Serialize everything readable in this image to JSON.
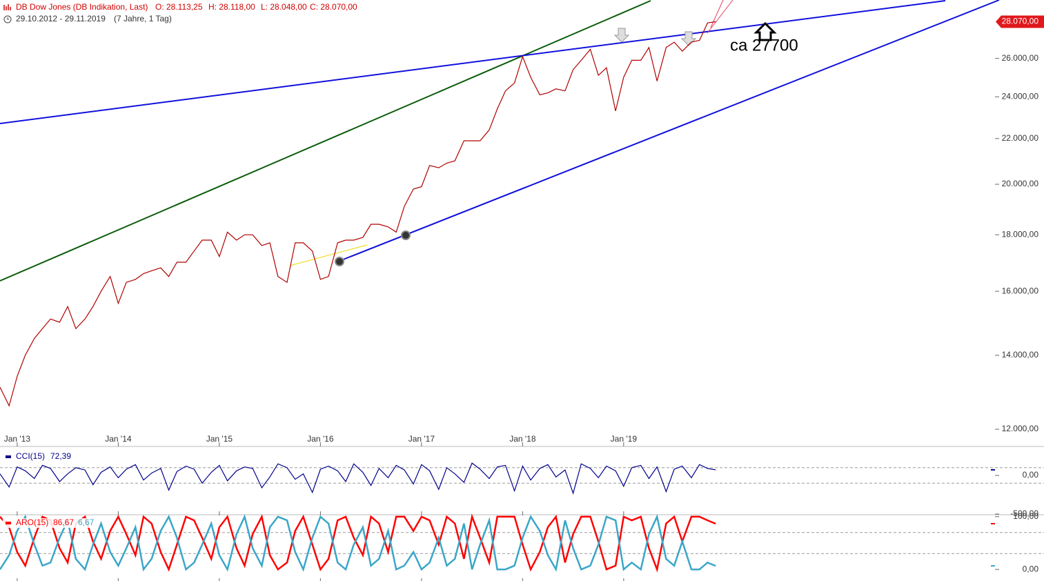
{
  "header": {
    "title": "DB Dow Jones (DB Indikation, Last)",
    "quote": [
      "O: 28.113,25",
      "H: 28.118,00",
      "L: 28.048,00",
      "C: 28.070,00"
    ],
    "period": "29.10.2012 - 29.11.2019",
    "range_note": "(7 Jahre, 1 Tag)"
  },
  "chart_data": [
    {
      "type": "line",
      "log_scale": true,
      "annotation": "ca 27700",
      "x": [
        2012.83,
        2012.92,
        2013.0,
        2013.08,
        2013.17,
        2013.25,
        2013.33,
        2013.42,
        2013.5,
        2013.58,
        2013.67,
        2013.75,
        2013.83,
        2013.92,
        2014.0,
        2014.08,
        2014.17,
        2014.25,
        2014.33,
        2014.42,
        2014.5,
        2014.58,
        2014.67,
        2014.75,
        2014.83,
        2014.92,
        2015.0,
        2015.08,
        2015.17,
        2015.25,
        2015.33,
        2015.42,
        2015.5,
        2015.58,
        2015.67,
        2015.75,
        2015.83,
        2015.92,
        2016.0,
        2016.08,
        2016.17,
        2016.25,
        2016.33,
        2016.42,
        2016.5,
        2016.58,
        2016.67,
        2016.75,
        2016.83,
        2016.92,
        2017.0,
        2017.08,
        2017.17,
        2017.25,
        2017.33,
        2017.42,
        2017.5,
        2017.58,
        2017.67,
        2017.75,
        2017.83,
        2017.92,
        2018.0,
        2018.08,
        2018.17,
        2018.25,
        2018.33,
        2018.42,
        2018.5,
        2018.58,
        2018.67,
        2018.75,
        2018.83,
        2018.92,
        2019.0,
        2019.08,
        2019.17,
        2019.25,
        2019.33,
        2019.42,
        2019.5,
        2019.58,
        2019.67,
        2019.75,
        2019.83,
        2019.91
      ],
      "series": [
        {
          "color": "#b00000",
          "values": [
            13100,
            12600,
            13400,
            14000,
            14500,
            14800,
            15100,
            15000,
            15500,
            14800,
            15100,
            15500,
            16000,
            16500,
            15600,
            16300,
            16400,
            16600,
            16700,
            16800,
            16500,
            17000,
            17000,
            17400,
            17800,
            17800,
            17200,
            18100,
            17800,
            18000,
            18000,
            17600,
            17700,
            16500,
            16300,
            17700,
            17700,
            17400,
            16400,
            16500,
            17700,
            17800,
            17800,
            17900,
            18400,
            18400,
            18300,
            18100,
            19100,
            19800,
            19900,
            20800,
            20700,
            20900,
            21000,
            21900,
            21900,
            21900,
            22400,
            23400,
            24300,
            24700,
            26100,
            25000,
            24100,
            24200,
            24400,
            24300,
            25400,
            25900,
            26500,
            25100,
            25500,
            23300,
            25000,
            25900,
            25900,
            26600,
            24800,
            26600,
            26900,
            26400,
            26900,
            27000,
            28000,
            28070
          ]
        }
      ],
      "last": {
        "value": 28070,
        "label": "28.070,00"
      },
      "xlim": [
        2012.83,
        2022.66
      ],
      "xticks": [
        {
          "value": 2013,
          "label": "Jan '13"
        },
        {
          "value": 2014,
          "label": "Jan '14"
        },
        {
          "value": 2015,
          "label": "Jan '15"
        },
        {
          "value": 2016,
          "label": "Jan '16"
        },
        {
          "value": 2017,
          "label": "Jan '17"
        },
        {
          "value": 2018,
          "label": "Jan '18"
        },
        {
          "value": 2019,
          "label": "Jan '19"
        }
      ],
      "ylim": [
        11610,
        29370
      ],
      "yticks": [
        {
          "value": 12000,
          "label": "12.000,00"
        },
        {
          "value": 14000,
          "label": "14.000,00"
        },
        {
          "value": 16000,
          "label": "16.000,00"
        },
        {
          "value": 18000,
          "label": "18.000,00"
        },
        {
          "value": 20000,
          "label": "20.000,00"
        },
        {
          "value": 22000,
          "label": "22.000,00"
        },
        {
          "value": 24000,
          "label": "24.000,00"
        },
        {
          "value": 26000,
          "label": "26.000,00"
        }
      ]
    },
    {
      "type": "line",
      "name": "CCI(15)",
      "current": {
        "value": 72.39,
        "label": "72,39"
      },
      "x": [
        2012.83,
        2012.92,
        2013.0,
        2013.08,
        2013.17,
        2013.25,
        2013.33,
        2013.42,
        2013.5,
        2013.58,
        2013.67,
        2013.75,
        2013.83,
        2013.92,
        2014.0,
        2014.08,
        2014.17,
        2014.25,
        2014.33,
        2014.42,
        2014.5,
        2014.58,
        2014.67,
        2014.75,
        2014.83,
        2014.92,
        2015.0,
        2015.08,
        2015.17,
        2015.25,
        2015.33,
        2015.42,
        2015.5,
        2015.58,
        2015.67,
        2015.75,
        2015.83,
        2015.92,
        2016.0,
        2016.08,
        2016.17,
        2016.25,
        2016.33,
        2016.42,
        2016.5,
        2016.58,
        2016.67,
        2016.75,
        2016.83,
        2016.92,
        2017.0,
        2017.08,
        2017.17,
        2017.25,
        2017.33,
        2017.42,
        2017.5,
        2017.58,
        2017.67,
        2017.75,
        2017.83,
        2017.92,
        2018.0,
        2018.08,
        2018.17,
        2018.25,
        2018.33,
        2018.42,
        2018.5,
        2018.58,
        2018.67,
        2018.75,
        2018.83,
        2018.92,
        2019.0,
        2019.08,
        2019.17,
        2019.25,
        2019.33,
        2019.42,
        2019.5,
        2019.58,
        2019.67,
        2019.75,
        2019.83,
        2019.91
      ],
      "series": [
        {
          "color": "#00008b",
          "values": [
            20,
            -150,
            110,
            60,
            -40,
            130,
            90,
            -80,
            20,
            100,
            70,
            -120,
            40,
            110,
            -30,
            80,
            140,
            -60,
            30,
            90,
            -190,
            50,
            120,
            80,
            -100,
            40,
            130,
            -70,
            60,
            110,
            90,
            -160,
            -20,
            150,
            100,
            -50,
            20,
            -220,
            80,
            120,
            60,
            -80,
            150,
            40,
            -130,
            90,
            -30,
            130,
            70,
            -110,
            140,
            60,
            -180,
            100,
            20,
            -90,
            160,
            80,
            -40,
            110,
            130,
            -200,
            120,
            -60,
            90,
            140,
            -20,
            70,
            -230,
            150,
            90,
            -30,
            120,
            60,
            -140,
            100,
            130,
            -40,
            110,
            -210,
            80,
            120,
            -30,
            140,
            90,
            72.39
          ]
        }
      ],
      "levels": [
        100,
        -100
      ],
      "xlim": [
        2012.83,
        2022.66
      ],
      "ylim": [
        -500,
        348
      ],
      "yticks": [
        {
          "value": 0,
          "label": "0,00"
        },
        {
          "value": -500,
          "label": "-500,00"
        }
      ]
    },
    {
      "type": "line",
      "name": "ARO(15)",
      "x": [
        2012.83,
        2012.92,
        2013.0,
        2013.08,
        2013.17,
        2013.25,
        2013.33,
        2013.42,
        2013.5,
        2013.58,
        2013.67,
        2013.75,
        2013.83,
        2013.92,
        2014.0,
        2014.08,
        2014.17,
        2014.25,
        2014.33,
        2014.42,
        2014.5,
        2014.58,
        2014.67,
        2014.75,
        2014.83,
        2014.92,
        2015.0,
        2015.08,
        2015.17,
        2015.25,
        2015.33,
        2015.42,
        2015.5,
        2015.58,
        2015.67,
        2015.75,
        2015.83,
        2015.92,
        2016.0,
        2016.08,
        2016.17,
        2016.25,
        2016.33,
        2016.42,
        2016.5,
        2016.58,
        2016.67,
        2016.75,
        2016.83,
        2016.92,
        2017.0,
        2017.08,
        2017.17,
        2017.25,
        2017.33,
        2017.42,
        2017.5,
        2017.58,
        2017.67,
        2017.75,
        2017.83,
        2017.92,
        2018.0,
        2018.08,
        2018.17,
        2018.25,
        2018.33,
        2018.42,
        2018.5,
        2018.58,
        2018.67,
        2018.75,
        2018.83,
        2018.92,
        2019.0,
        2019.08,
        2019.17,
        2019.25,
        2019.33,
        2019.42,
        2019.5,
        2019.58,
        2019.67,
        2019.75,
        2019.83,
        2019.91
      ],
      "series": [
        {
          "color": "#ff0000",
          "current": {
            "value": 86.67,
            "label": "86,67"
          },
          "values": [
            100,
            80,
            33,
            7,
            60,
            100,
            93,
            40,
            13,
            87,
            100,
            53,
            20,
            73,
            100,
            67,
            27,
            100,
            87,
            33,
            0,
            47,
            100,
            93,
            60,
            20,
            80,
            100,
            40,
            7,
            67,
            100,
            27,
            0,
            13,
            73,
            100,
            47,
            0,
            20,
            93,
            100,
            60,
            27,
            100,
            87,
            33,
            100,
            100,
            73,
            100,
            93,
            47,
            100,
            87,
            20,
            100,
            60,
            13,
            100,
            100,
            100,
            47,
            0,
            33,
            80,
            100,
            13,
            67,
            100,
            100,
            53,
            0,
            7,
            100,
            93,
            100,
            40,
            0,
            87,
            100,
            53,
            100,
            100,
            93,
            86.67
          ]
        },
        {
          "color": "#3aa6c8",
          "current": {
            "value": 6.67,
            "label": "6,67"
          },
          "values": [
            0,
            27,
            73,
            100,
            47,
            7,
            13,
            60,
            93,
            20,
            0,
            47,
            87,
            33,
            7,
            40,
            80,
            0,
            20,
            73,
            100,
            60,
            0,
            13,
            47,
            87,
            27,
            0,
            67,
            100,
            40,
            7,
            80,
            100,
            93,
            33,
            0,
            60,
            100,
            87,
            13,
            0,
            47,
            80,
            7,
            20,
            73,
            0,
            7,
            33,
            0,
            13,
            60,
            7,
            20,
            87,
            0,
            47,
            93,
            0,
            0,
            7,
            60,
            100,
            73,
            27,
            0,
            93,
            40,
            0,
            7,
            47,
            100,
            93,
            0,
            13,
            0,
            67,
            100,
            20,
            7,
            53,
            0,
            0,
            13,
            6.67
          ]
        }
      ],
      "levels": [
        70,
        30
      ],
      "xlim": [
        2012.83,
        2022.66
      ],
      "ylim": [
        -22,
        101
      ],
      "yticks": [
        {
          "value": 100,
          "label": "100,00"
        },
        {
          "value": 0,
          "label": "0,00"
        }
      ]
    }
  ]
}
